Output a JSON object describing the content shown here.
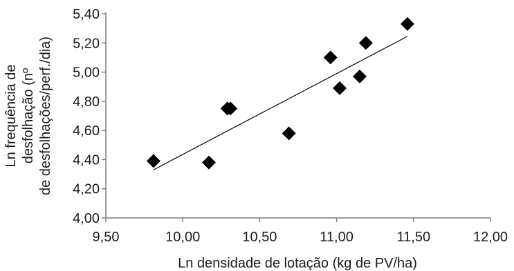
{
  "chart_data": {
    "type": "scatter",
    "title": "",
    "xlabel": "Ln densidade de lotação (kg de PV/ha)",
    "ylabel_lines": [
      "Ln frequência de",
      "desfolhação                   (nº",
      "de desfolhações/perf./dia)"
    ],
    "xlim": [
      9.5,
      12.0
    ],
    "ylim": [
      4.0,
      5.4
    ],
    "x_ticks": [
      "9,50",
      "10,00",
      "10,50",
      "11,00",
      "11,50",
      "12,00"
    ],
    "y_ticks": [
      "4,00",
      "4,20",
      "4,40",
      "4,60",
      "4,80",
      "5,00",
      "5,20",
      "5,40"
    ],
    "marker": "diamond",
    "series": [
      {
        "x": [
          9.81,
          10.17,
          10.29,
          10.31,
          10.69,
          10.96,
          11.02,
          11.15,
          11.19,
          11.46
        ],
        "y": [
          4.39,
          4.38,
          4.75,
          4.75,
          4.58,
          5.1,
          4.89,
          4.97,
          5.2,
          5.33
        ]
      }
    ],
    "trendline": {
      "x": [
        9.81,
        11.46
      ],
      "y": [
        4.33,
        5.245
      ]
    },
    "grid": false,
    "legend": "none",
    "colors": {
      "marker": "#000000",
      "axis": "#7f7f7f",
      "trendline": "#000000"
    }
  }
}
